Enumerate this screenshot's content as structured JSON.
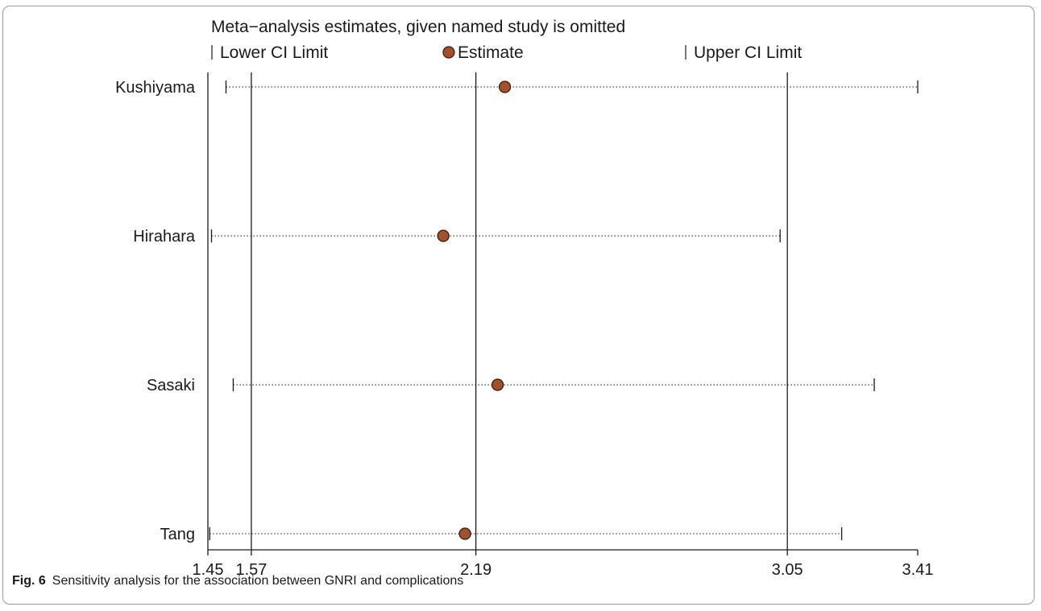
{
  "chart_data": {
    "type": "scatter",
    "title": "Meta−analysis estimates, given named study is omitted",
    "legend": {
      "placement": "top",
      "lower_label": "Lower CI Limit",
      "estimate_label": "Estimate",
      "upper_label": "Upper CI Limit"
    },
    "studies": [
      {
        "name": "Kushiyama",
        "lower": 1.5,
        "estimate": 2.27,
        "upper": 3.41
      },
      {
        "name": "Hirahara",
        "lower": 1.46,
        "estimate": 2.1,
        "upper": 3.03
      },
      {
        "name": "Sasaki",
        "lower": 1.52,
        "estimate": 2.25,
        "upper": 3.29
      },
      {
        "name": "Tang",
        "lower": 1.455,
        "estimate": 2.16,
        "upper": 3.2
      }
    ],
    "reference_lines": [
      1.57,
      2.19,
      3.05
    ],
    "x_ticks": [
      "1.45",
      "1.57",
      "2.19",
      "3.05",
      "3.41"
    ],
    "xlim": [
      1.45,
      3.41
    ],
    "colors": {
      "estimate_fill": "#a0522d",
      "estimate_stroke": "#3a1a08",
      "line": "#1a1a1a"
    }
  },
  "caption": {
    "label": "Fig. 6",
    "text": "Sensitivity analysis for the association between GNRI and complications"
  }
}
